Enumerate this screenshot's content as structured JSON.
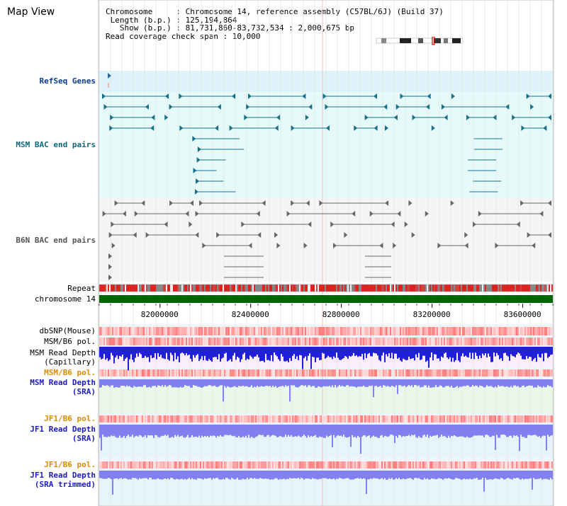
{
  "view_title": "Map View",
  "info": {
    "line1": "Chromosome     : Chromosome 14, reference assembly (C57BL/6J) (Build 37)",
    "line2": " Length (b.p.) : 125,194,864",
    "line3": "   Show (b.p.) : 81,731,860-83,732,534 : 2,000,675 bp",
    "line4": "Read coverage check span : 10,000"
  },
  "tracks": {
    "refseq": "RefSeq Genes",
    "msm_bac": "MSM BAC end pairs",
    "b6n_bac": "B6N BAC end pairs",
    "repeat": "Repeat",
    "chromosome": "chromosome 14",
    "dbsnp": "dbSNP(Mouse)",
    "msm_b6_pol_1": "MSM/B6 pol.",
    "msm_depth_cap_1": "MSM Read Depth",
    "msm_depth_cap_2": "(Capillary)",
    "msm_b6_pol_2": "MSM/B6 pol.",
    "msm_depth_sra_1": "MSM Read Depth",
    "msm_depth_sra_2": "(SRA)",
    "jf1_b6_pol_1": "JF1/B6 pol.",
    "jf1_depth_sra_1": "JF1 Read Depth",
    "jf1_depth_sra_2": "(SRA)",
    "jf1_b6_pol_2": "JF1/B6 pol.",
    "jf1_depth_trim_1": "JF1 Read Depth",
    "jf1_depth_trim_2": "(SRA trimmed)"
  },
  "axis": {
    "ticks": [
      {
        "pos": 82000000,
        "label": "82000000"
      },
      {
        "pos": 82400000,
        "label": "82400000"
      },
      {
        "pos": 82800000,
        "label": "82800000"
      },
      {
        "pos": 83200000,
        "label": "83200000"
      },
      {
        "pos": 83600000,
        "label": "83600000"
      }
    ],
    "start": 81731860,
    "end": 83732534
  },
  "colors": {
    "refseq_bg": "#dff3fa",
    "msm_bg": "#e6fafa",
    "b6n_bg": "#f5f5f8",
    "chromosome": "#006600",
    "depth_blue": "#2020d8",
    "depth_light": "#8080f0",
    "pol_red": "#ee3333"
  }
}
